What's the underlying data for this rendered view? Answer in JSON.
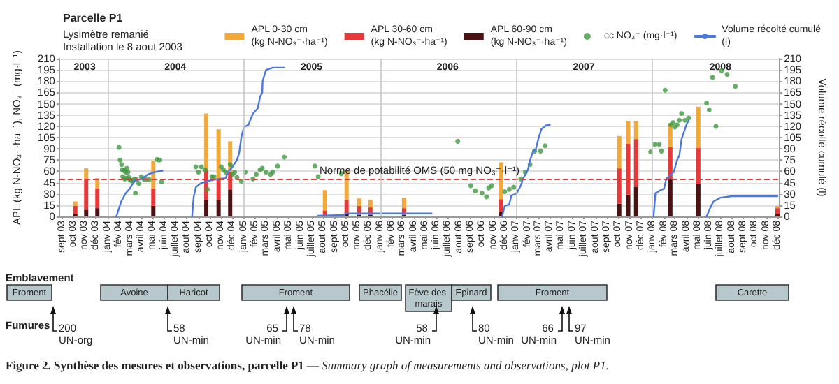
{
  "chart_data": {
    "type": "bar",
    "title": "Parcelle P1",
    "subtitle": "Lysimètre remanié\nInstallation le 8 aout 2003",
    "ylabel": "APL (kg N-NO₃⁻·ha⁻¹), NO₃⁻ (mg·l⁻¹)",
    "y2label": "Volume récolté cumulé (l)",
    "stacked": true,
    "legend": "top right",
    "grid": "y",
    "x": [
      "2003-10-07",
      "2003-11-05",
      "2003-12-05",
      "2004-05-03",
      "2004-09-22",
      "2004-10-25",
      "2004-11-25",
      "2005-08-06",
      "2005-10-03",
      "2005-11-06",
      "2005-12-06",
      "2006-03-06",
      "2006-11-20",
      "2007-10-04",
      "2007-10-28",
      "2007-11-18",
      "2008-02-18",
      "2008-05-03",
      "2008-12-01"
    ],
    "series": [
      {
        "name": "APL 60-90 cm (kg N-NO₃⁻·ha⁻¹)",
        "color": "#4a1212",
        "values": [
          3,
          9,
          11,
          14,
          22,
          22,
          36,
          null,
          3,
          2,
          2,
          2,
          6,
          17,
          29,
          39,
          50,
          43,
          3
        ]
      },
      {
        "name": "APL 30-60 cm (kg N-NO₃⁻·ha⁻¹)",
        "color": "#e8393a",
        "values": [
          11,
          41,
          26,
          23,
          40,
          28,
          23,
          8,
          19,
          12,
          10,
          9,
          17,
          47,
          68,
          64,
          42,
          48,
          8
        ]
      },
      {
        "name": "APL 0-30 cm (kg N-NO₃⁻·ha⁻¹)",
        "color": "#f2a93b",
        "values": [
          6,
          14,
          14,
          37,
          75,
          66,
          41,
          27,
          40,
          10,
          10,
          14,
          49,
          43,
          30,
          24,
          32,
          55,
          3
        ]
      },
      {
        "name": "cc NO₃⁻ (mg·l⁻¹)",
        "type": "scatter",
        "marker": "circle",
        "color": "#3f9a3f",
        "x": [
          "2004-02-01",
          "2004-02-04",
          "2004-02-08",
          "2004-02-10",
          "2004-02-15",
          "2004-02-19",
          "2004-02-22",
          "2004-02-25",
          "2004-02-11",
          "2004-02-16",
          "2004-02-20",
          "2004-02-27",
          "2004-03-01",
          "2004-03-04",
          "2004-03-09",
          "2004-03-13",
          "2004-03-19",
          "2004-03-25",
          "2004-03-16",
          "2004-04-01",
          "2004-04-07",
          "2004-04-13",
          "2004-04-22",
          "2004-05-13",
          "2004-05-19",
          "2004-05-25",
          "2004-08-25",
          "2004-09-01",
          "2004-09-09",
          "2004-09-19",
          "2004-09-25",
          "2004-10-07",
          "2004-10-13",
          "2004-11-01",
          "2004-11-07",
          "2004-11-13",
          "2004-11-25",
          "2004-12-01",
          "2004-12-07",
          "2004-12-13",
          "2004-12-25",
          "2005-01-04",
          "2005-01-25",
          "2005-02-03",
          "2005-02-13",
          "2005-02-19",
          "2005-03-01",
          "2005-03-13",
          "2005-03-19",
          "2005-04-01",
          "2005-04-19",
          "2005-07-10",
          "2005-07-19",
          "2005-09-19",
          "2006-07-28",
          "2006-09-01",
          "2006-09-13",
          "2006-10-01",
          "2006-10-13",
          "2006-10-19",
          "2006-10-27",
          "2006-12-01",
          "2006-12-13",
          "2006-12-25",
          "2007-01-13",
          "2007-01-25",
          "2007-02-07",
          "2007-02-19",
          "2007-03-07",
          "2007-03-19",
          "2007-12-27",
          "2008-01-07",
          "2008-01-19",
          "2008-01-25",
          "2008-02-04",
          "2008-02-19",
          "2008-02-25",
          "2008-03-01",
          "2008-03-07",
          "2008-03-13",
          "2008-03-19",
          "2008-03-28",
          "2008-04-07",
          "2008-05-25",
          "2008-06-01",
          "2008-06-10",
          "2008-06-19",
          "2008-07-04",
          "2008-07-19",
          "2008-08-10"
        ],
        "values": [
          92,
          75,
          69,
          62,
          61,
          59,
          64,
          59,
          53,
          50,
          51,
          52,
          49,
          48,
          47,
          50,
          49,
          44,
          31,
          53,
          50,
          49,
          49,
          76,
          75,
          46,
          66,
          59,
          66,
          62,
          36,
          53,
          53,
          66,
          62,
          59,
          69,
          56,
          59,
          52,
          47,
          59,
          50,
          56,
          62,
          64,
          59,
          56,
          59,
          67,
          79,
          67,
          53,
          57,
          100,
          41,
          34,
          31,
          26,
          38,
          41,
          33,
          36,
          39,
          50,
          59,
          69,
          87,
          87,
          94,
          86,
          96,
          96,
          87,
          168,
          122,
          125,
          119,
          122,
          128,
          137,
          128,
          131,
          151,
          142,
          185,
          120,
          194,
          189,
          173
        ]
      },
      {
        "name": "Volume récolté cumulé (l)",
        "type": "line",
        "axis": "y2",
        "marker": "none",
        "line_style": "solid",
        "color": "#4b78e0",
        "x": [
          "2004-01-25",
          "2004-02-07",
          "2004-02-19",
          "2004-03-01",
          "2004-03-13",
          "2004-04-01",
          "2004-04-19",
          "2004-05-07",
          "2004-05-28",
          "2004-07-01",
          "2004-08-15",
          "2004-08-19",
          "2004-08-25",
          "2004-09-07",
          "2004-09-25",
          "2004-10-25",
          "2004-11-13",
          "2004-11-19",
          "2004-12-01",
          "2004-12-13",
          "2004-12-19",
          "2004-12-25",
          "2005-01-01",
          "2005-01-13",
          "2005-01-25",
          "2005-02-07",
          "2005-02-13",
          "2005-02-19",
          "2005-02-20",
          "2005-03-01",
          "2005-03-19",
          "2005-04-19",
          "2005-06-01",
          "2005-07-19",
          "2005-09-25",
          "2005-10-01",
          "2006-05-19",
          "2006-07-01",
          "2006-11-24",
          "2006-12-01",
          "2006-12-13",
          "2006-12-19",
          "2007-01-01",
          "2007-01-13",
          "2007-01-19",
          "2007-02-01",
          "2007-02-07",
          "2007-02-15",
          "2007-02-22",
          "2007-03-01",
          "2007-03-09",
          "2007-03-21",
          "2007-04-01",
          "2007-06-01",
          "2008-01-04",
          "2008-01-09",
          "2008-01-19",
          "2008-02-01",
          "2008-02-07",
          "2008-02-19",
          "2008-02-27",
          "2008-03-07",
          "2008-03-13",
          "2008-03-19",
          "2008-04-01",
          "2008-04-07",
          "2008-04-20",
          "2008-05-25",
          "2008-06-07",
          "2008-06-13",
          "2008-07-01",
          "2008-08-01",
          "2008-12-01"
        ],
        "values": [
          0,
          20,
          31,
          37,
          47,
          50,
          56,
          59,
          61,
          null,
          0,
          25,
          39,
          44,
          47,
          50,
          51,
          59,
          66,
          75,
          84,
          106,
          119,
          122,
          137,
          144,
          159,
          165,
          180,
          195,
          198,
          198,
          null,
          1,
          2,
          4,
          4,
          null,
          0,
          14,
          16,
          28,
          30,
          41,
          50,
          62,
          75,
          87,
          89,
          103,
          116,
          121,
          122,
          null,
          0,
          31,
          34,
          37,
          50,
          56,
          59,
          75,
          81,
          103,
          122,
          128,
          null,
          0,
          15,
          20,
          25,
          27,
          27
        ]
      }
    ],
    "xlim": [
      "2003-08-25",
      "2008-12-07"
    ],
    "xticks": [
      {
        "value": "2003-09",
        "label": "sept 03"
      },
      {
        "value": "2003-10",
        "label": "oct 03"
      },
      {
        "value": "2003-11",
        "label": "nov 03"
      },
      {
        "value": "2003-12",
        "label": "déc 03"
      },
      {
        "value": "2004-01",
        "label": "janv 04"
      },
      {
        "value": "2004-02",
        "label": "fév 04"
      },
      {
        "value": "2004-03",
        "label": "mars 04"
      },
      {
        "value": "2004-04",
        "label": "avril 04"
      },
      {
        "value": "2004-05",
        "label": "mai 04"
      },
      {
        "value": "2004-06",
        "label": "juin 04"
      },
      {
        "value": "2004-07",
        "label": "juillet 04"
      },
      {
        "value": "2004-08",
        "label": "aout 04"
      },
      {
        "value": "2004-09",
        "label": "sept 04"
      },
      {
        "value": "2004-10",
        "label": "oct 04"
      },
      {
        "value": "2004-11",
        "label": "nov 04"
      },
      {
        "value": "2004-12",
        "label": "déc 04"
      },
      {
        "value": "2005-01",
        "label": "janv 05"
      },
      {
        "value": "2005-02",
        "label": "fév 05"
      },
      {
        "value": "2005-03",
        "label": "mars 05"
      },
      {
        "value": "2005-04",
        "label": "avril 05"
      },
      {
        "value": "2005-05",
        "label": "mai 05"
      },
      {
        "value": "2005-06",
        "label": "juin 05"
      },
      {
        "value": "2005-07",
        "label": "juillet 05"
      },
      {
        "value": "2005-08",
        "label": "aout 05"
      },
      {
        "value": "2005-09",
        "label": "sept 05"
      },
      {
        "value": "2005-10",
        "label": "oct 05"
      },
      {
        "value": "2005-11",
        "label": "nov 05"
      },
      {
        "value": "2005-12",
        "label": "déc 05"
      },
      {
        "value": "2006-01",
        "label": "janv 06"
      },
      {
        "value": "2006-02",
        "label": "fév 06"
      },
      {
        "value": "2006-03",
        "label": "mars 06"
      },
      {
        "value": "2006-04",
        "label": "avril 06"
      },
      {
        "value": "2006-05",
        "label": "mai 06"
      },
      {
        "value": "2006-06",
        "label": "juin 06"
      },
      {
        "value": "2006-07",
        "label": "juillet 06"
      },
      {
        "value": "2006-08",
        "label": "aout 06"
      },
      {
        "value": "2006-09",
        "label": "sept 06"
      },
      {
        "value": "2006-10",
        "label": "oct 06"
      },
      {
        "value": "2006-11",
        "label": "nov 06"
      },
      {
        "value": "2006-12",
        "label": "déc 06"
      },
      {
        "value": "2007-01",
        "label": "janv 07"
      },
      {
        "value": "2007-02",
        "label": "fév 07"
      },
      {
        "value": "2007-03",
        "label": "mars 07"
      },
      {
        "value": "2007-04",
        "label": "avril 07"
      },
      {
        "value": "2007-05",
        "label": "mai 07"
      },
      {
        "value": "2007-06",
        "label": "juin 07"
      },
      {
        "value": "2007-07",
        "label": "juillet 07"
      },
      {
        "value": "2007-08",
        "label": "aout 07"
      },
      {
        "value": "2007-09",
        "label": "sept 07"
      },
      {
        "value": "2007-10",
        "label": "oct 07"
      },
      {
        "value": "2007-11",
        "label": "nov 07"
      },
      {
        "value": "2007-12",
        "label": "déc 07"
      },
      {
        "value": "2008-01",
        "label": "janv 08"
      },
      {
        "value": "2008-02",
        "label": "fév 08"
      },
      {
        "value": "2008-03",
        "label": "mars 08"
      },
      {
        "value": "2008-04",
        "label": "avril 08"
      },
      {
        "value": "2008-05",
        "label": "mai 08"
      },
      {
        "value": "2008-06",
        "label": "juin 08"
      },
      {
        "value": "2008-07",
        "label": "juillet 08"
      },
      {
        "value": "2008-08",
        "label": "aout 08"
      },
      {
        "value": "2008-09",
        "label": "sept 08"
      },
      {
        "value": "2008-10",
        "label": "oct 08"
      },
      {
        "value": "2008-11",
        "label": "nov 08"
      },
      {
        "value": "2008-12",
        "label": "déc 08"
      }
    ],
    "x2lim": [
      "2003-08-25",
      "2008-12-07"
    ],
    "x2ticks": [
      {
        "value": "2003-11-01",
        "label": "2003"
      },
      {
        "value": "2004-07-01",
        "label": "2004"
      },
      {
        "value": "2005-07-01",
        "label": "2005"
      },
      {
        "value": "2006-07-01",
        "label": "2006"
      },
      {
        "value": "2007-07-01",
        "label": "2007"
      },
      {
        "value": "2008-07-01",
        "label": "2008"
      }
    ],
    "ylim": [
      0,
      210
    ],
    "yticks": [
      0,
      15,
      30,
      45,
      60,
      75,
      90,
      105,
      120,
      135,
      150,
      165,
      180,
      195,
      210
    ],
    "y2lim": [
      0,
      210
    ],
    "y2ticks": [
      0,
      15,
      30,
      45,
      60,
      75,
      90,
      105,
      120,
      135,
      150,
      165,
      180,
      195,
      210
    ],
    "ref_lines": [
      {
        "axis": "y",
        "value": 50,
        "label": "Norme de potabilité OMS (50 mg NO₃⁻·l⁻¹)",
        "color": "#e03a3a",
        "line_style": "dashed"
      },
      {
        "axis": "x",
        "value": "2004-01-01",
        "label": null,
        "color": "#c8c8c8"
      },
      {
        "axis": "x",
        "value": "2005-01-01",
        "label": null,
        "color": "#c8c8c8"
      },
      {
        "axis": "x",
        "value": "2006-01-01",
        "label": null,
        "color": "#c8c8c8"
      },
      {
        "axis": "x",
        "value": "2007-01-01",
        "label": null,
        "color": "#c8c8c8"
      },
      {
        "axis": "x",
        "value": "2008-01-01",
        "label": null,
        "color": "#c8c8c8"
      }
    ],
    "annotations": [
      "Emblavement",
      "Fumures",
      "Figure 2. Synthèse des mesures et observations, parcelle P1 —",
      "Summary graph of measurements and observations, plot P1.",
      "Froment",
      "Avoine",
      "Haricot",
      "Froment",
      "Phacélie",
      "Fève des marais",
      "Epinard",
      "Froment",
      "Carotte",
      "200 UN-org",
      "58 UN-min",
      "65 UN-min",
      "78 UN-min",
      "58 UN-min",
      "80 UN-min",
      "66 UN-min",
      "97 UN-min"
    ]
  }
}
